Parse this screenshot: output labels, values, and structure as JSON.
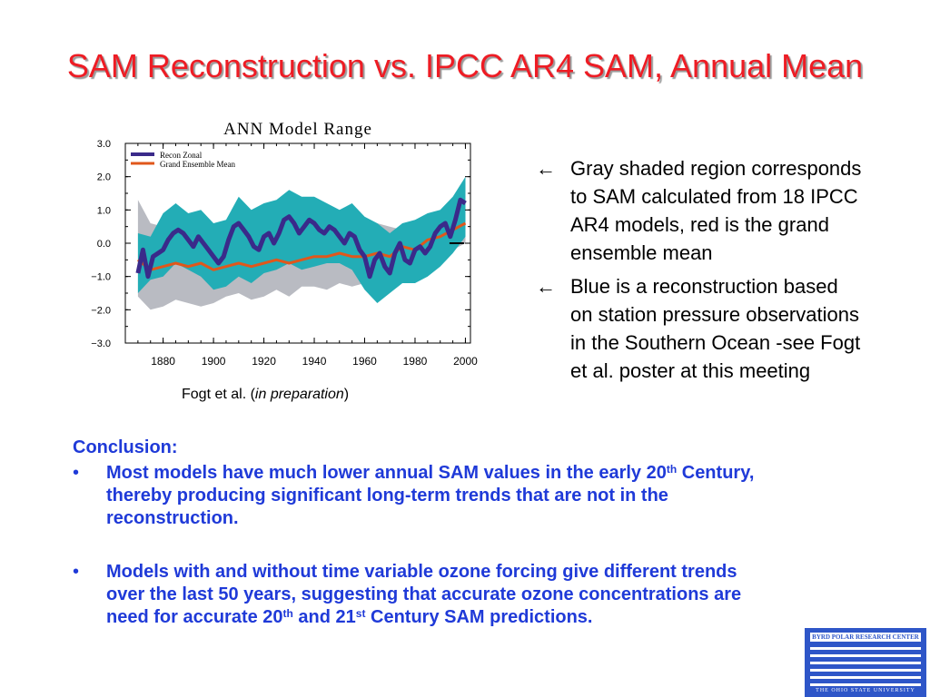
{
  "slide": {
    "title": "SAM Reconstruction vs. IPCC AR4 SAM, Annual Mean",
    "caption_prefix": "Fogt et al. (",
    "caption_italic": "in preparation",
    "caption_suffix": ")"
  },
  "notes": [
    {
      "arrow": "←",
      "text": "Gray shaded region corresponds to SAM calculated from 18 IPCC AR4 models, red is the grand ensemble mean"
    },
    {
      "arrow": "←",
      "text": "Blue is a reconstruction based on station pressure observations in the Southern Ocean -see Fogt et al. poster at this meeting"
    }
  ],
  "conclusion": {
    "heading": "Conclusion:",
    "bullets": [
      {
        "dot": "•",
        "a": "Most models have much lower annual SAM values in the early 20",
        "sup1": "th",
        "b": " Century, thereby producing significant long-term trends that are not in the reconstruction."
      },
      {
        "dot": "•",
        "a": "Models with and without time variable ozone forcing give different trends over the last 50 years, suggesting that accurate ozone concentrations are need for accurate 20",
        "sup1": "th",
        "b": " and 21",
        "sup2": "st",
        "c": " Century SAM predictions."
      }
    ]
  },
  "logo": {
    "top": "BYRD POLAR RESEARCH CENTER",
    "bottom": "THE OHIO STATE UNIVERSITY"
  },
  "chart_data": {
    "type": "line",
    "title": "ANN Model Range",
    "xlabel": "",
    "ylabel": "",
    "xlim": [
      1865,
      2002
    ],
    "ylim": [
      -3,
      3
    ],
    "x_ticks": [
      1880,
      1900,
      1920,
      1940,
      1960,
      1980,
      2000
    ],
    "y_ticks": [
      3,
      2,
      1,
      0,
      -1,
      -2,
      -3
    ],
    "y_tick_labels": [
      "3.0",
      "2.0",
      "1.0",
      "0.0",
      "−1.0",
      "−2.0",
      "−3.0"
    ],
    "grid": false,
    "legend_position": "top-left",
    "series": [
      {
        "name": "Recon Zonal",
        "color": "#3a2a8a",
        "x": [
          1870,
          1872,
          1874,
          1876,
          1878,
          1880,
          1882,
          1884,
          1886,
          1888,
          1890,
          1892,
          1894,
          1896,
          1898,
          1900,
          1902,
          1904,
          1906,
          1908,
          1910,
          1912,
          1914,
          1916,
          1918,
          1920,
          1922,
          1924,
          1926,
          1928,
          1930,
          1932,
          1934,
          1936,
          1938,
          1940,
          1942,
          1944,
          1946,
          1948,
          1950,
          1952,
          1954,
          1956,
          1958,
          1960,
          1962,
          1964,
          1966,
          1968,
          1970,
          1972,
          1974,
          1976,
          1978,
          1980,
          1982,
          1984,
          1986,
          1988,
          1990,
          1992,
          1994,
          1996,
          1998,
          2000
        ],
        "y": [
          -0.9,
          -0.2,
          -1.0,
          -0.4,
          -0.3,
          -0.2,
          0.1,
          0.3,
          0.4,
          0.3,
          0.1,
          -0.1,
          0.2,
          0.0,
          -0.2,
          -0.4,
          -0.6,
          -0.4,
          0.1,
          0.5,
          0.6,
          0.4,
          0.2,
          -0.1,
          -0.2,
          0.2,
          0.3,
          0.0,
          0.3,
          0.7,
          0.8,
          0.6,
          0.3,
          0.5,
          0.7,
          0.6,
          0.4,
          0.3,
          0.5,
          0.4,
          0.2,
          0.0,
          0.3,
          0.2,
          -0.2,
          -0.4,
          -1.0,
          -0.5,
          -0.3,
          -0.7,
          -0.9,
          -0.3,
          0.0,
          -0.5,
          -0.6,
          -0.2,
          -0.1,
          -0.3,
          -0.1,
          0.3,
          0.5,
          0.6,
          0.2,
          0.7,
          1.3,
          1.2
        ]
      },
      {
        "name": "Grand Ensemble Mean",
        "color": "#e0571b",
        "x": [
          1870,
          1875,
          1880,
          1885,
          1890,
          1895,
          1900,
          1905,
          1910,
          1915,
          1920,
          1925,
          1930,
          1935,
          1940,
          1945,
          1950,
          1955,
          1960,
          1965,
          1970,
          1975,
          1980,
          1985,
          1990,
          1995,
          2000
        ],
        "y": [
          -0.5,
          -0.8,
          -0.7,
          -0.6,
          -0.7,
          -0.6,
          -0.8,
          -0.7,
          -0.6,
          -0.7,
          -0.6,
          -0.5,
          -0.6,
          -0.5,
          -0.4,
          -0.4,
          -0.3,
          -0.4,
          -0.4,
          -0.3,
          -0.4,
          -0.1,
          -0.2,
          0.1,
          0.2,
          0.4,
          0.6
        ]
      }
    ],
    "bands": [
      {
        "color": "#b9bbc2",
        "x": [
          1870,
          1875,
          1880,
          1885,
          1890,
          1895,
          1900,
          1905,
          1910,
          1915,
          1920,
          1925,
          1930,
          1935,
          1940,
          1945,
          1950,
          1955,
          1960,
          1965,
          1970,
          1975,
          1980,
          1985,
          1990,
          1995,
          2000
        ],
        "upper": [
          1.3,
          0.6,
          0.5,
          0.7,
          0.6,
          0.5,
          0.3,
          0.2,
          0.4,
          0.3,
          0.5,
          0.6,
          0.7,
          0.8,
          0.7,
          0.6,
          0.6,
          0.4,
          0.4,
          0.6,
          0.5,
          0.4,
          0.5,
          0.8,
          0.9,
          1.0,
          1.2
        ],
        "lower": [
          -1.6,
          -2.0,
          -1.9,
          -1.7,
          -1.8,
          -1.9,
          -1.8,
          -1.6,
          -1.5,
          -1.7,
          -1.6,
          -1.4,
          -1.6,
          -1.3,
          -1.3,
          -1.4,
          -1.2,
          -1.3,
          -1.2,
          -1.3,
          -1.4,
          -1.0,
          -1.0,
          -0.9,
          -0.5,
          -0.2,
          0.0
        ]
      },
      {
        "color": "#23adb6",
        "x": [
          1870,
          1875,
          1880,
          1885,
          1890,
          1895,
          1900,
          1905,
          1910,
          1915,
          1920,
          1925,
          1930,
          1935,
          1940,
          1945,
          1950,
          1955,
          1960,
          1965,
          1970,
          1975,
          1980,
          1985,
          1990,
          1995,
          2000
        ],
        "upper": [
          0.3,
          0.2,
          0.9,
          1.2,
          0.9,
          1.0,
          0.6,
          0.7,
          1.4,
          1.0,
          1.2,
          1.3,
          1.6,
          1.4,
          1.4,
          1.2,
          1.0,
          1.2,
          0.8,
          0.6,
          0.3,
          0.6,
          0.7,
          0.9,
          1.0,
          1.4,
          2.0
        ],
        "lower": [
          -1.5,
          -1.1,
          -1.0,
          -0.6,
          -0.8,
          -1.0,
          -1.4,
          -1.3,
          -1.0,
          -1.2,
          -0.9,
          -0.8,
          -0.6,
          -0.8,
          -0.7,
          -0.6,
          -0.6,
          -0.8,
          -1.4,
          -1.8,
          -1.5,
          -1.2,
          -1.2,
          -1.0,
          -0.7,
          -0.3,
          0.2
        ]
      }
    ],
    "annotations": [
      {
        "text": "—",
        "x": 1998,
        "y": 0.0
      }
    ]
  }
}
